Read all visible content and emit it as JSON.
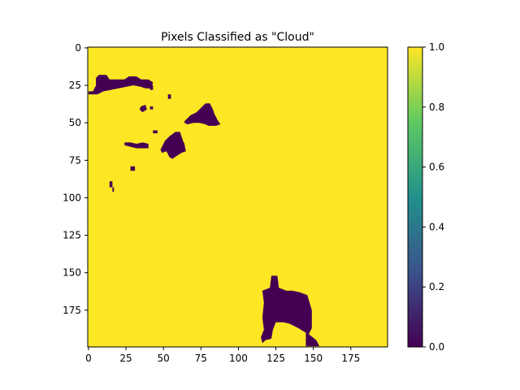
{
  "chart_data": {
    "type": "heatmap",
    "title": "Pixels Classified as \"Cloud\"",
    "xlabel": "",
    "ylabel": "",
    "grid": false,
    "xlim": [
      -0.5,
      199.5
    ],
    "ylim": [
      199.5,
      -0.5
    ],
    "x_ticks": [
      0,
      25,
      50,
      75,
      100,
      125,
      150,
      175
    ],
    "y_ticks": [
      0,
      25,
      50,
      75,
      100,
      125,
      150,
      175
    ],
    "background_value": 1.0,
    "value_min": 0.0,
    "value_max": 1.0,
    "colormap": "viridis",
    "colormap_stops": [
      "#440154",
      "#3b528b",
      "#21918c",
      "#5ec962",
      "#fde725"
    ],
    "colorbar": {
      "position": "right",
      "ticks": [
        "0.0",
        "0.2",
        "0.4",
        "0.6",
        "0.8",
        "1.0"
      ]
    },
    "regions_value_0": [
      {
        "name": "upper-left-cloud",
        "points": [
          [
            0,
            29
          ],
          [
            3,
            29
          ],
          [
            5,
            25
          ],
          [
            5,
            20
          ],
          [
            7,
            18
          ],
          [
            12,
            18
          ],
          [
            14,
            21
          ],
          [
            24,
            21
          ],
          [
            27,
            19
          ],
          [
            32,
            19
          ],
          [
            35,
            21
          ],
          [
            40,
            21
          ],
          [
            43,
            23
          ],
          [
            42,
            27
          ],
          [
            38,
            27
          ],
          [
            35,
            26
          ],
          [
            30,
            25
          ],
          [
            25,
            26
          ],
          [
            20,
            27
          ],
          [
            15,
            28
          ],
          [
            10,
            29
          ],
          [
            6,
            31
          ],
          [
            0,
            31
          ]
        ]
      },
      {
        "name": "small-blob-a",
        "points": [
          [
            41,
            25
          ],
          [
            43,
            25
          ],
          [
            43,
            28
          ],
          [
            41,
            28
          ]
        ]
      },
      {
        "name": "small-blob-b",
        "points": [
          [
            35,
            39
          ],
          [
            38,
            38
          ],
          [
            39,
            41
          ],
          [
            36,
            43
          ],
          [
            34,
            41
          ]
        ]
      },
      {
        "name": "small-blob-c",
        "points": [
          [
            41,
            39
          ],
          [
            43,
            39
          ],
          [
            43,
            41
          ],
          [
            41,
            41
          ]
        ]
      },
      {
        "name": "small-blob-d",
        "points": [
          [
            53,
            31
          ],
          [
            55,
            31
          ],
          [
            55,
            34
          ],
          [
            53,
            34
          ]
        ]
      },
      {
        "name": "center-cloud",
        "points": [
          [
            64,
            49
          ],
          [
            68,
            45
          ],
          [
            72,
            43
          ],
          [
            75,
            40
          ],
          [
            78,
            37
          ],
          [
            81,
            37
          ],
          [
            83,
            41
          ],
          [
            84,
            44
          ],
          [
            86,
            48
          ],
          [
            88,
            51
          ],
          [
            85,
            52
          ],
          [
            80,
            52
          ],
          [
            78,
            51
          ],
          [
            74,
            50
          ],
          [
            70,
            50
          ],
          [
            66,
            51
          ],
          [
            64,
            50
          ]
        ]
      },
      {
        "name": "mid-cloud",
        "points": [
          [
            48,
            68
          ],
          [
            51,
            62
          ],
          [
            54,
            59
          ],
          [
            58,
            56
          ],
          [
            61,
            56
          ],
          [
            63,
            62
          ],
          [
            64,
            64
          ],
          [
            65,
            69
          ],
          [
            62,
            70
          ],
          [
            59,
            72
          ],
          [
            56,
            74
          ],
          [
            54,
            73
          ],
          [
            52,
            69
          ],
          [
            49,
            70
          ]
        ]
      },
      {
        "name": "small-blob-e",
        "points": [
          [
            43,
            55
          ],
          [
            46,
            55
          ],
          [
            46,
            57
          ],
          [
            43,
            57
          ]
        ]
      },
      {
        "name": "small-blob-f",
        "points": [
          [
            24,
            63
          ],
          [
            28,
            63
          ],
          [
            32,
            64
          ],
          [
            36,
            63
          ],
          [
            40,
            64
          ],
          [
            40,
            67
          ],
          [
            36,
            67
          ],
          [
            32,
            67
          ],
          [
            28,
            66
          ],
          [
            24,
            65
          ]
        ]
      },
      {
        "name": "small-blob-g",
        "points": [
          [
            28,
            79
          ],
          [
            31,
            79
          ],
          [
            31,
            82
          ],
          [
            28,
            82
          ]
        ]
      },
      {
        "name": "small-blob-h",
        "points": [
          [
            14,
            89
          ],
          [
            16,
            89
          ],
          [
            16,
            93
          ],
          [
            14,
            93
          ]
        ]
      },
      {
        "name": "small-blob-i",
        "points": [
          [
            16,
            93
          ],
          [
            17,
            93
          ],
          [
            17,
            96
          ],
          [
            16,
            96
          ]
        ]
      },
      {
        "name": "lower-right-cloud",
        "points": [
          [
            116,
            162
          ],
          [
            121,
            160
          ],
          [
            122,
            152
          ],
          [
            126,
            152
          ],
          [
            127,
            160
          ],
          [
            132,
            162
          ],
          [
            136,
            162
          ],
          [
            141,
            163
          ],
          [
            146,
            165
          ],
          [
            149,
            175
          ],
          [
            149,
            187
          ],
          [
            147,
            191
          ],
          [
            152,
            195
          ],
          [
            154,
            199
          ],
          [
            145,
            199
          ],
          [
            145,
            190
          ],
          [
            140,
            187
          ],
          [
            134,
            184
          ],
          [
            130,
            183
          ],
          [
            125,
            183
          ],
          [
            123,
            188
          ],
          [
            122,
            194
          ],
          [
            118,
            195
          ],
          [
            116,
            197
          ],
          [
            115,
            193
          ],
          [
            117,
            188
          ],
          [
            116,
            180
          ],
          [
            117,
            170
          ]
        ]
      }
    ]
  }
}
